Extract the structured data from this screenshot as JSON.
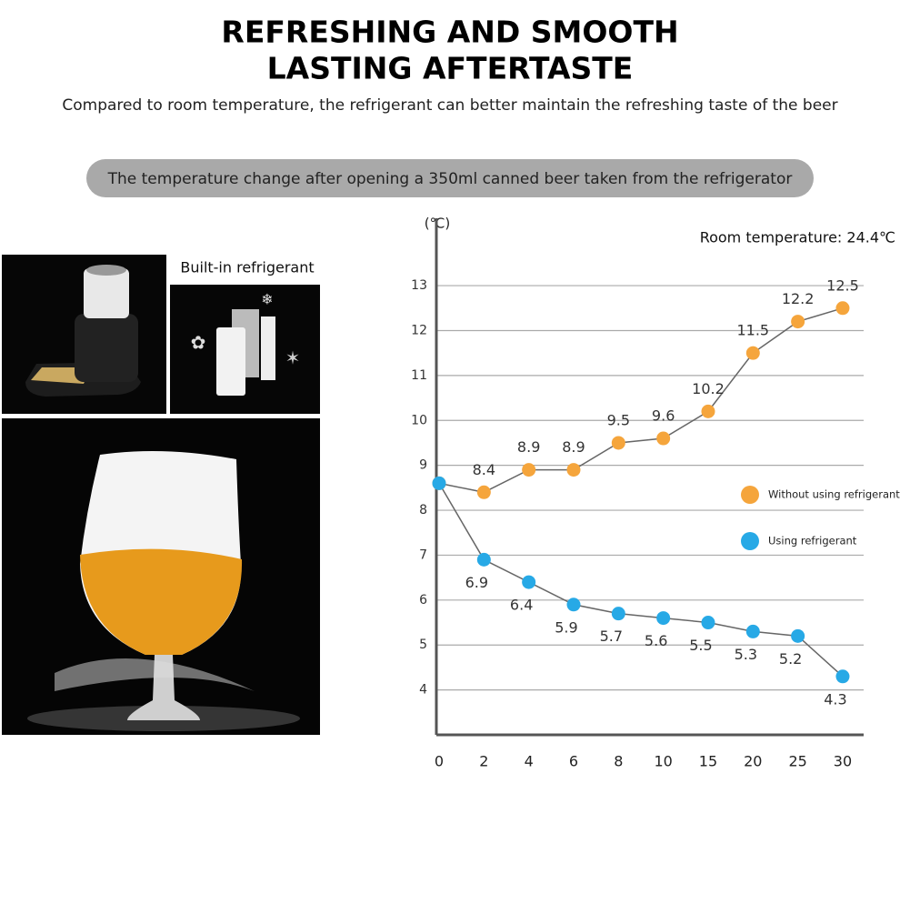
{
  "header": {
    "title_lines": [
      "REFRESHING AND SMOOTH",
      "LASTING AFTERTASTE"
    ],
    "subtitle": "Compared to room temperature, the refrigerant can better maintain the refreshing taste of the beer"
  },
  "banner": "The temperature change after opening a 350ml canned beer taken from the refrigerator",
  "images": {
    "caption": "Built-in refrigerant"
  },
  "chart_data": {
    "type": "line",
    "y_unit_label": "(℃)",
    "annotation": "Room temperature: 24.4℃",
    "categories": [
      "0",
      "2",
      "4",
      "6",
      "8",
      "10",
      "15",
      "20",
      "25",
      "30"
    ],
    "series": [
      {
        "name": "Without using refrigerant",
        "color": "#f5a53c",
        "values": [
          8.6,
          8.4,
          8.9,
          8.9,
          9.5,
          9.6,
          10.2,
          11.5,
          12.2,
          12.5
        ],
        "value_labels": [
          null,
          "8.4",
          "8.9",
          "8.9",
          "9.5",
          "9.6",
          "10.2",
          "11.5",
          "12.2",
          "12.5"
        ]
      },
      {
        "name": "Using refrigerant",
        "color": "#27a9e6",
        "values": [
          8.6,
          6.9,
          6.4,
          5.9,
          5.7,
          5.6,
          5.5,
          5.3,
          5.2,
          4.3
        ],
        "value_labels": [
          null,
          "6.9",
          "6.4",
          "5.9",
          "5.7",
          "5.6",
          "5.5",
          "5.3",
          "5.2",
          "4.3"
        ]
      }
    ],
    "ylim": [
      3,
      14.5
    ],
    "yticks": [
      4,
      5,
      6,
      7,
      8,
      9,
      10,
      11,
      12,
      13
    ],
    "grid": true,
    "legend": "right"
  }
}
